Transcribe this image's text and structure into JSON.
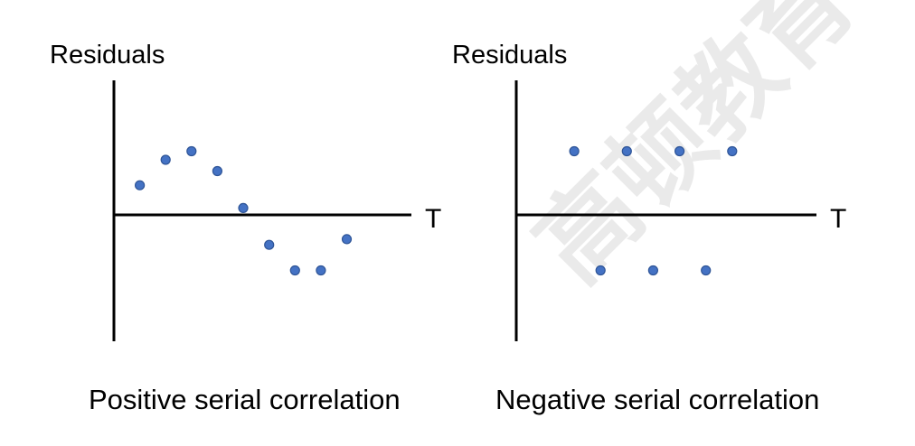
{
  "watermark": "高顿教育",
  "colors": {
    "point_fill": "#4472c4",
    "point_stroke": "#2f5597",
    "axis": "#000000"
  },
  "chart_data": [
    {
      "type": "scatter",
      "title": "Positive serial correlation",
      "ylabel": "Residuals",
      "xlabel": "T",
      "x": [
        1,
        2,
        3,
        4,
        5,
        6,
        7,
        8,
        9
      ],
      "y": [
        1.0,
        1.9,
        2.2,
        1.5,
        0.2,
        -1.1,
        -2.0,
        -2.0,
        -0.9
      ],
      "xlim": [
        0,
        11.5
      ],
      "ylim": [
        -4.5,
        4.7
      ],
      "grid": false
    },
    {
      "type": "scatter",
      "title": "Negative serial correlation",
      "ylabel": "Residuals",
      "xlabel": "T",
      "x": [
        1,
        2,
        3,
        4,
        5,
        6,
        7
      ],
      "y": [
        2.2,
        -2.0,
        2.2,
        -2.0,
        2.2,
        -2.0,
        2.2
      ],
      "xlim": [
        -1.2,
        10.2
      ],
      "ylim": [
        -4.5,
        4.7
      ],
      "grid": false
    }
  ]
}
